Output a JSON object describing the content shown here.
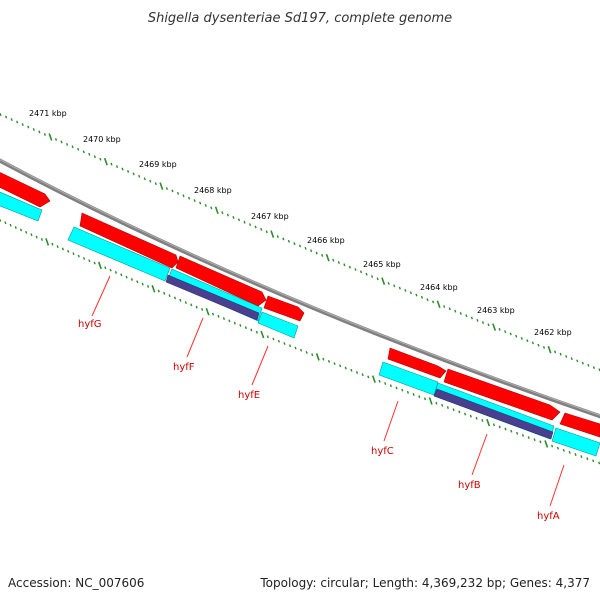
{
  "title": "Shigella dysenteriae Sd197, complete genome",
  "footer": {
    "accession": "Accession: NC_007606",
    "topology": "Topology: circular; Length: 4,369,232 bp; Genes: 4,377"
  },
  "ruler_labels": [
    "2471 kbp",
    "2470 kbp",
    "2469 kbp",
    "2468 kbp",
    "2467 kbp",
    "2466 kbp",
    "2465 kbp",
    "2464 kbp",
    "2463 kbp",
    "2462 kbp"
  ],
  "gene_labels": [
    "hyfG",
    "hyfF",
    "hyfE",
    "hyfC",
    "hyfB",
    "hyfA"
  ],
  "colors": {
    "cds_red": "#ff0000",
    "cds_cyan": "#00ffff",
    "cds_navy": "#4a3f8f",
    "backbone": "#888888",
    "ticks": "#2e8b2e",
    "gene_label": "#cc0000"
  }
}
